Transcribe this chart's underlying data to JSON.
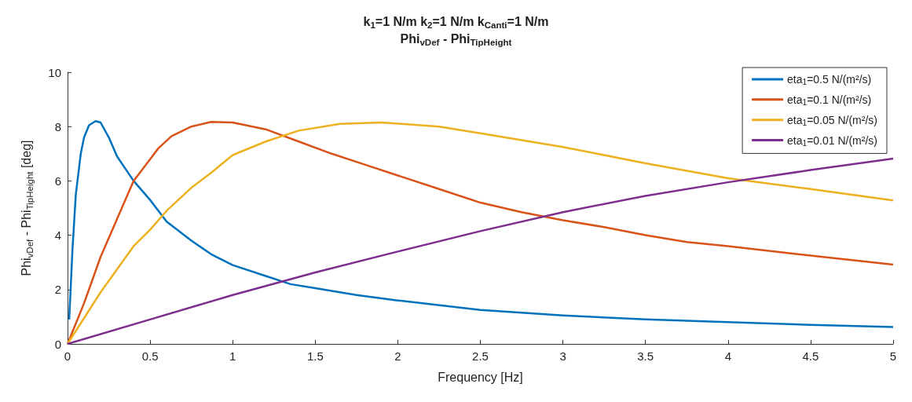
{
  "chart_data": {
    "type": "line",
    "title": "k$_{1}$=1 N/m k$_{2}$=1 N/m k$_{Canti}$=1 N/m",
    "subtitle": "Phi$_{vDef}$ - Phi$_{TipHeight}$",
    "xlabel": "Frequency [Hz]",
    "ylabel": "Phi$_{vDef}$ - Phi$_{TipHeight}$ [deg]",
    "xlim": [
      0,
      5
    ],
    "ylim": [
      0,
      10
    ],
    "xticks": [
      0,
      0.5,
      1,
      1.5,
      2,
      2.5,
      3,
      3.5,
      4,
      4.5,
      5
    ],
    "yticks": [
      0,
      2,
      4,
      6,
      8,
      10
    ],
    "grid": false,
    "legend": "top right",
    "marker": "none",
    "line_style": "solid",
    "series": [
      {
        "name": "eta$_{1}$=0.5 N/(m²/s)",
        "color": "#0072bd",
        "x": [
          0.01,
          0.03,
          0.05,
          0.08,
          0.1,
          0.13,
          0.17,
          0.2,
          0.25,
          0.3,
          0.4,
          0.5,
          0.6,
          0.75,
          0.87,
          1,
          1.2,
          1.35,
          1.5,
          1.75,
          2,
          2.5,
          3,
          3.5,
          4,
          4.5,
          5
        ],
        "values": [
          0.9,
          3.5,
          5.5,
          7,
          7.6,
          8.05,
          8.2,
          8.15,
          7.6,
          6.9,
          6,
          5.3,
          4.5,
          3.8,
          3.3,
          2.9,
          2.5,
          2.2,
          2.05,
          1.8,
          1.6,
          1.25,
          1.05,
          0.9,
          0.8,
          0.7,
          0.62
        ]
      },
      {
        "name": "eta$_{1}$=0.1 N/(m²/s)",
        "color": "#d95319",
        "x": [
          0,
          0.1,
          0.2,
          0.3,
          0.4,
          0.5,
          0.55,
          0.63,
          0.75,
          0.87,
          1,
          1.2,
          1.4,
          1.6,
          1.8,
          2,
          2.25,
          2.5,
          2.75,
          3,
          3.25,
          3.5,
          3.75,
          4,
          4.5,
          5
        ],
        "values": [
          0,
          1.5,
          3.2,
          4.6,
          6,
          6.8,
          7.2,
          7.65,
          8,
          8.17,
          8.15,
          7.9,
          7.45,
          7,
          6.6,
          6.2,
          5.7,
          5.2,
          4.85,
          4.55,
          4.3,
          4,
          3.75,
          3.6,
          3.25,
          2.92
        ]
      },
      {
        "name": "eta$_{1}$=0.05 N/(m²/s)",
        "color": "#edb120",
        "x": [
          0,
          0.2,
          0.4,
          0.5,
          0.6,
          0.75,
          0.87,
          1,
          1.2,
          1.4,
          1.65,
          1.9,
          2.25,
          2.5,
          3,
          3.5,
          4,
          4.5,
          5
        ],
        "values": [
          0,
          1.9,
          3.6,
          4.2,
          4.9,
          5.75,
          6.3,
          6.95,
          7.45,
          7.85,
          8.1,
          8.15,
          8,
          7.75,
          7.25,
          6.65,
          6.1,
          5.7,
          5.28
        ]
      },
      {
        "name": "eta$_{1}$=0.01 N/(m²/s)",
        "color": "#7e2f8e",
        "x": [
          0,
          0.5,
          1,
          1.5,
          2,
          2.5,
          3,
          3.5,
          4,
          4.5,
          5
        ],
        "values": [
          0,
          0.9,
          1.8,
          2.63,
          3.4,
          4.15,
          4.85,
          5.45,
          5.95,
          6.4,
          6.82
        ]
      }
    ]
  }
}
